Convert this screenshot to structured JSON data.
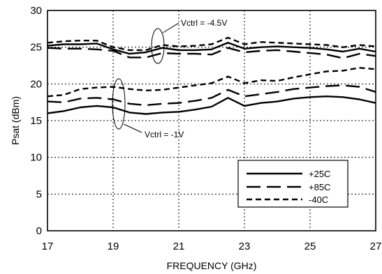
{
  "chart_data": {
    "type": "line",
    "title": "",
    "xlabel": "FREQUENCY (GHz)",
    "ylabel": "Psat (dBm)",
    "xlim": [
      17,
      27
    ],
    "ylim": [
      0,
      30
    ],
    "xticks": [
      "17",
      "19",
      "21",
      "23",
      "25",
      "27"
    ],
    "yticks": [
      "0",
      "5",
      "10",
      "15",
      "20",
      "25",
      "30"
    ],
    "grid": true,
    "legend_position": "bottom-right",
    "legend": [
      "+25C",
      "+85C",
      "-40C"
    ],
    "annotations": [
      "Vctrl = -4.5V",
      "Vctrl = -1V"
    ],
    "series": [
      {
        "name": "+25C",
        "group": "Vctrl = -4.5V",
        "style": "solid",
        "x": [
          17,
          17.5,
          18,
          18.5,
          19,
          19.5,
          20,
          20.5,
          21,
          21.5,
          22,
          22.5,
          23,
          23.5,
          24,
          24.5,
          25,
          25.5,
          26,
          26.5,
          27
        ],
        "y": [
          25.2,
          25.4,
          25.4,
          25.5,
          24.7,
          24.1,
          24.3,
          24.9,
          24.6,
          24.6,
          24.7,
          25.6,
          24.8,
          25.0,
          25.1,
          25.0,
          24.9,
          24.7,
          24.4,
          24.8,
          24.4
        ]
      },
      {
        "name": "+85C",
        "group": "Vctrl = -4.5V",
        "style": "long-dash",
        "x": [
          17,
          17.5,
          18,
          18.5,
          19,
          19.5,
          20,
          20.5,
          21,
          21.5,
          22,
          22.5,
          23,
          23.5,
          24,
          24.5,
          25,
          25.5,
          26,
          26.5,
          27
        ],
        "y": [
          24.9,
          24.8,
          24.8,
          24.7,
          24.5,
          23.6,
          23.6,
          24.2,
          24.1,
          24.1,
          24.0,
          24.9,
          24.3,
          24.5,
          24.6,
          24.4,
          24.2,
          24.0,
          23.5,
          24.1,
          23.8
        ]
      },
      {
        "name": "-40C",
        "group": "Vctrl = -4.5V",
        "style": "short-dash",
        "x": [
          17,
          17.5,
          18,
          18.5,
          19,
          19.5,
          20,
          20.5,
          21,
          21.5,
          22,
          22.5,
          23,
          23.5,
          24,
          24.5,
          25,
          25.5,
          26,
          26.5,
          27
        ],
        "y": [
          25.6,
          25.8,
          25.9,
          25.9,
          25.0,
          24.6,
          24.6,
          25.3,
          25.1,
          25.2,
          25.4,
          26.3,
          25.4,
          25.7,
          25.6,
          25.5,
          25.4,
          25.3,
          25.0,
          25.3,
          25.1
        ]
      },
      {
        "name": "+25C",
        "group": "Vctrl = -1V",
        "style": "solid",
        "x": [
          17,
          17.5,
          18,
          18.5,
          19,
          19.5,
          20,
          20.5,
          21,
          21.5,
          22,
          22.5,
          23,
          23.5,
          24,
          24.5,
          25,
          25.5,
          26,
          26.5,
          27
        ],
        "y": [
          16.0,
          16.3,
          16.8,
          17.0,
          16.8,
          16.1,
          15.9,
          16.1,
          16.2,
          16.5,
          16.9,
          18.1,
          17.0,
          17.4,
          17.6,
          18.0,
          18.2,
          18.3,
          18.2,
          17.9,
          17.4
        ]
      },
      {
        "name": "+85C",
        "group": "Vctrl = -1V",
        "style": "long-dash",
        "x": [
          17,
          17.5,
          18,
          18.5,
          19,
          19.5,
          20,
          20.5,
          21,
          21.5,
          22,
          22.5,
          23,
          23.5,
          24,
          24.5,
          25,
          25.5,
          26,
          26.5,
          27
        ],
        "y": [
          17.6,
          17.5,
          18.0,
          18.1,
          17.9,
          17.3,
          17.1,
          17.3,
          17.4,
          17.7,
          18.1,
          19.2,
          18.3,
          18.6,
          18.9,
          19.3,
          19.5,
          19.7,
          19.8,
          19.6,
          18.9
        ]
      },
      {
        "name": "-40C",
        "group": "Vctrl = -1V",
        "style": "short-dash",
        "x": [
          17,
          17.5,
          18,
          18.5,
          19,
          19.5,
          20,
          20.5,
          21,
          21.5,
          22,
          22.5,
          23,
          23.5,
          24,
          24.5,
          25,
          25.5,
          26,
          26.5,
          27
        ],
        "y": [
          18.3,
          18.5,
          19.3,
          19.5,
          19.6,
          19.3,
          19.1,
          19.2,
          19.5,
          19.8,
          20.1,
          21.0,
          20.1,
          20.5,
          20.4,
          20.9,
          21.3,
          21.7,
          21.8,
          22.2,
          22.0
        ]
      }
    ]
  }
}
